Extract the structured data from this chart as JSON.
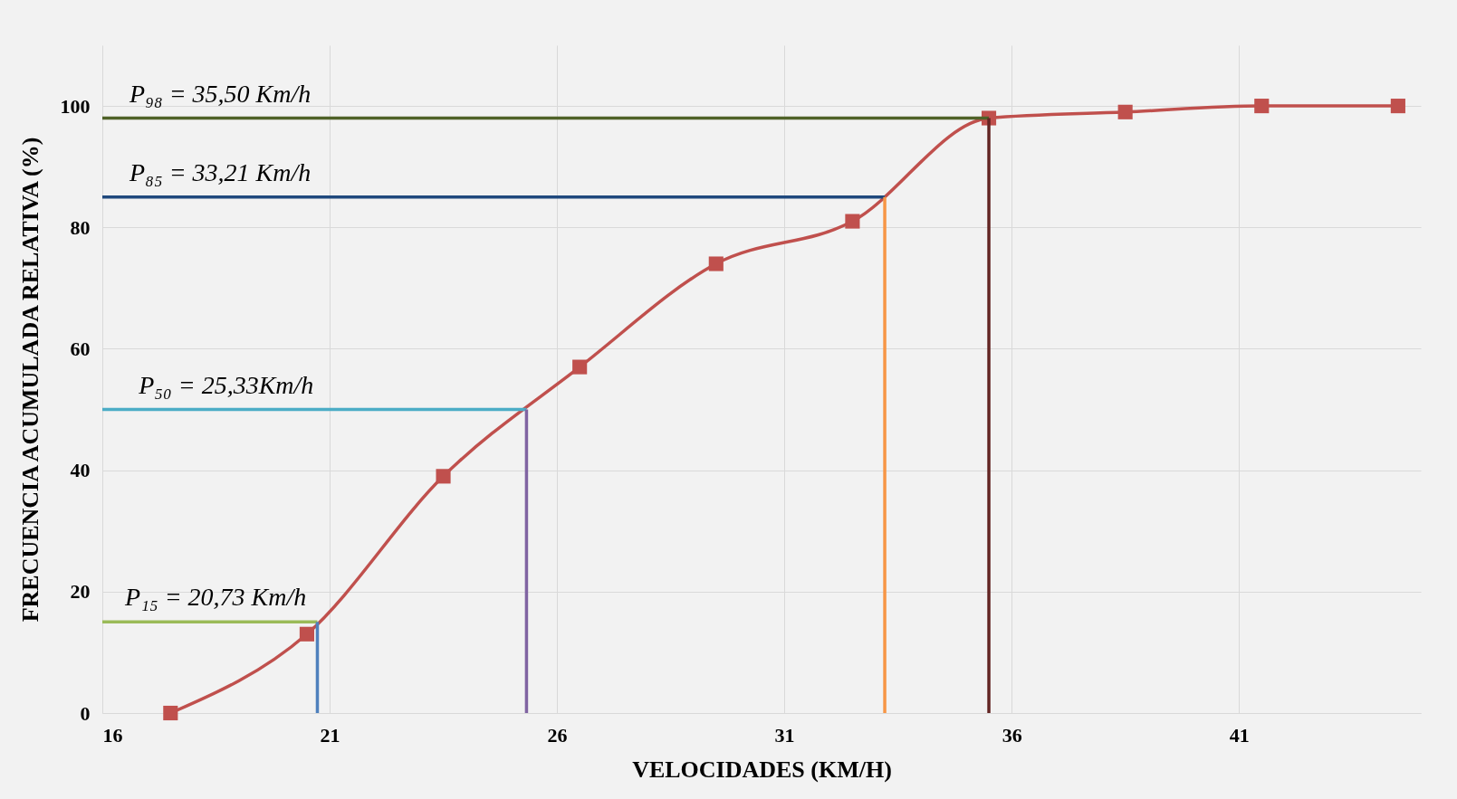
{
  "chart_data": {
    "type": "line",
    "xlabel": "VELOCIDADES (KM/H)",
    "ylabel": "FRECUENCIA ACUMULADA RELATIVA (%)",
    "xlim": [
      16,
      45
    ],
    "xticks": [
      16,
      21,
      26,
      31,
      36,
      41
    ],
    "ylim": [
      0,
      110
    ],
    "yticks": [
      0,
      20,
      40,
      60,
      80,
      100
    ],
    "grid": true,
    "series": [
      {
        "color": "#c0504d",
        "marker": "square",
        "x": [
          17.5,
          20.5,
          23.5,
          26.5,
          29.5,
          32.5,
          35.5,
          38.5,
          41.5,
          44.5
        ],
        "values": [
          0,
          13,
          39,
          57,
          74,
          81,
          98,
          99,
          100,
          100
        ]
      },
      {
        "color": "#9bbb59",
        "x": [
          16,
          20.73
        ],
        "values": [
          15,
          15
        ]
      },
      {
        "color": "#4f81bd",
        "x": [
          20.73,
          20.73
        ],
        "values": [
          0,
          15
        ]
      },
      {
        "color": "#4bacc6",
        "x": [
          16,
          25.33
        ],
        "values": [
          50,
          50
        ]
      },
      {
        "color": "#8064a2",
        "x": [
          25.33,
          25.33
        ],
        "values": [
          0,
          50
        ]
      },
      {
        "color": "#1f497d",
        "x": [
          16,
          33.21
        ],
        "values": [
          85,
          85
        ]
      },
      {
        "color": "#f79646",
        "x": [
          33.21,
          33.21
        ],
        "values": [
          0,
          85
        ]
      },
      {
        "color": "#4f6228",
        "x": [
          16,
          35.5
        ],
        "values": [
          98,
          98
        ]
      },
      {
        "color": "#632523",
        "x": [
          35.5,
          35.5
        ],
        "values": [
          0,
          98
        ]
      }
    ],
    "annotations": [
      {
        "text": "P₁₅ = 20,73 Km/h",
        "x": 16.5,
        "y": 15
      },
      {
        "text": "P₅₀ = 25,33Km/h",
        "x": 16.8,
        "y": 50
      },
      {
        "text": "P₈₅ = 33,21 Km/h",
        "x": 16.6,
        "y": 85
      },
      {
        "text": "P₉₈ = 35,50 Km/h",
        "x": 16.6,
        "y": 98
      }
    ]
  }
}
